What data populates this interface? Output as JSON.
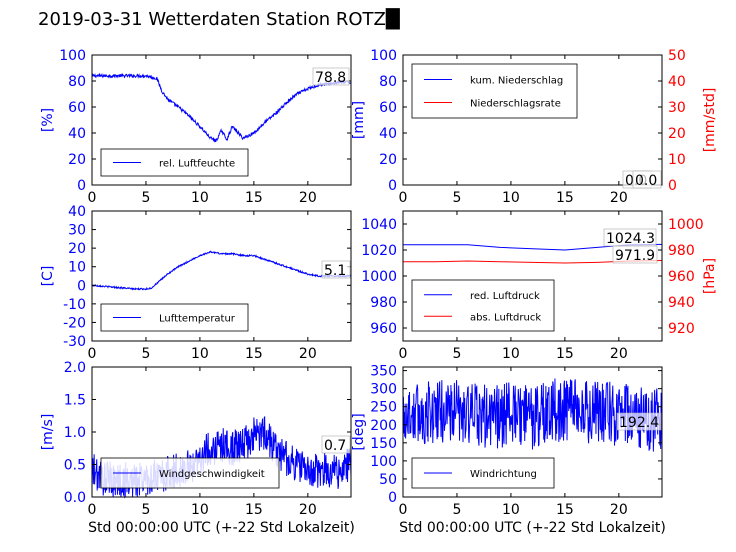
{
  "figure": {
    "title": "2019-03-31 Wetterdaten Station ROTZ█"
  },
  "colors": {
    "primary": "#0000ff",
    "secondary": "#ff0000",
    "axis": "#000000"
  },
  "chart_data": [
    {
      "id": "humidity",
      "type": "line",
      "ylabel": "[%]",
      "xlim": [
        0,
        24
      ],
      "ylim": [
        0,
        100
      ],
      "xticks": [
        0,
        5,
        10,
        15,
        20
      ],
      "yticks": [
        0,
        20,
        40,
        60,
        80,
        100
      ],
      "grid": false,
      "legend": {
        "position": "lower-left",
        "entries": [
          {
            "label": "rel. Luftfeuchte",
            "color": "#0000ff"
          }
        ]
      },
      "annotation": "78.8",
      "noise": 1.2,
      "series": [
        {
          "name": "rel. Luftfeuchte",
          "color": "#0000ff",
          "x": [
            0,
            1,
            2,
            3,
            4,
            5,
            6,
            6.5,
            7,
            8,
            9,
            10,
            11,
            11.5,
            12,
            12.5,
            13,
            14,
            15,
            16,
            17,
            18,
            19,
            20,
            21,
            22,
            23,
            24
          ],
          "y": [
            84,
            84,
            84,
            84,
            84,
            84,
            82,
            72,
            66,
            60,
            53,
            45,
            36,
            34,
            42,
            35,
            45,
            36,
            40,
            48,
            55,
            63,
            70,
            74,
            77,
            78,
            79,
            79
          ]
        }
      ]
    },
    {
      "id": "precipitation",
      "type": "line",
      "ylabel": "[mm]",
      "ylabel_right": "[mm/std]",
      "xlim": [
        0,
        24
      ],
      "ylim": [
        0,
        100
      ],
      "ylim_right": [
        0,
        50
      ],
      "xticks": [
        0,
        5,
        10,
        15,
        20
      ],
      "yticks": [
        0,
        20,
        40,
        60,
        80,
        100
      ],
      "yticks_right": [
        0,
        10,
        20,
        30,
        40,
        50
      ],
      "grid": false,
      "legend": {
        "position": "upper-left",
        "entries": [
          {
            "label": "kum. Niederschlag",
            "color": "#0000ff"
          },
          {
            "label": "Niederschlagsrate",
            "color": "#ff0000"
          }
        ]
      },
      "annotation": "0.0",
      "annotation2": "0.0",
      "noise": 0,
      "series": [
        {
          "name": "kum. Niederschlag",
          "color": "#0000ff",
          "x": [
            0,
            24
          ],
          "y": [
            0,
            0
          ]
        },
        {
          "name": "Niederschlagsrate",
          "color": "#ff0000",
          "axis": "right",
          "x": [
            0,
            24
          ],
          "y": [
            0,
            0
          ]
        }
      ]
    },
    {
      "id": "temperature",
      "type": "line",
      "ylabel": "[C]",
      "xlim": [
        0,
        24
      ],
      "ylim": [
        -30,
        40
      ],
      "xticks": [
        0,
        5,
        10,
        15,
        20
      ],
      "yticks": [
        -30,
        -20,
        -10,
        0,
        10,
        20,
        30,
        40
      ],
      "grid": false,
      "legend": {
        "position": "lower-left",
        "entries": [
          {
            "label": "Lufttemperatur",
            "color": "#0000ff"
          }
        ]
      },
      "annotation": "5.1",
      "noise": 0.4,
      "series": [
        {
          "name": "Lufttemperatur",
          "color": "#0000ff",
          "x": [
            0,
            1,
            2,
            3,
            4,
            5,
            5.5,
            6,
            7,
            8,
            9,
            10,
            11,
            12,
            13,
            14,
            15,
            16,
            17,
            18,
            19,
            20,
            21,
            22,
            23,
            24
          ],
          "y": [
            0,
            -0.5,
            -1,
            -1.5,
            -2,
            -2,
            -1.5,
            1,
            6,
            10,
            13,
            16,
            18,
            17,
            17,
            16,
            16,
            14,
            12,
            10,
            8,
            6,
            5,
            5,
            5,
            5
          ]
        }
      ]
    },
    {
      "id": "pressure",
      "type": "line",
      "xlim": [
        0,
        24
      ],
      "ylim": [
        950,
        1050
      ],
      "ylim_right": [
        910,
        1010
      ],
      "ylabel_right": "[hPa]",
      "xticks": [
        0,
        5,
        10,
        15,
        20
      ],
      "yticks": [
        960,
        980,
        1000,
        1020,
        1040
      ],
      "yticks_right": [
        920,
        940,
        960,
        980,
        1000
      ],
      "grid": false,
      "legend": {
        "position": "lower-left",
        "entries": [
          {
            "label": "red. Luftdruck",
            "color": "#0000ff"
          },
          {
            "label": "abs. Luftdruck",
            "color": "#ff0000"
          }
        ]
      },
      "annotation": "1024.3",
      "annotation2": "971.9",
      "noise": 0,
      "series": [
        {
          "name": "red. Luftdruck",
          "color": "#0000ff",
          "x": [
            0,
            3,
            6,
            9,
            12,
            15,
            18,
            21,
            24
          ],
          "y": [
            1024,
            1024,
            1024,
            1022,
            1021,
            1020,
            1022,
            1024,
            1024.3
          ]
        },
        {
          "name": "abs. Luftdruck",
          "color": "#ff0000",
          "axis": "right",
          "x": [
            0,
            3,
            6,
            9,
            12,
            15,
            18,
            21,
            24
          ],
          "y": [
            971,
            971,
            971.5,
            971,
            970.5,
            970,
            970.5,
            971.5,
            971.9
          ]
        }
      ]
    },
    {
      "id": "wind-speed",
      "type": "line",
      "ylabel": "[m/s]",
      "xlabel": "Std 00:00:00 UTC (+-22 Std Lokalzeit)",
      "xlim": [
        0,
        24
      ],
      "ylim": [
        0,
        2.0
      ],
      "xticks": [
        0,
        5,
        10,
        15,
        20
      ],
      "yticks": [
        0.0,
        0.5,
        1.0,
        1.5,
        2.0
      ],
      "ytick_labels": [
        "0.0",
        "0.5",
        "1.0",
        "1.5",
        "2.0"
      ],
      "grid": false,
      "legend": {
        "position": "lower-center",
        "entries": [
          {
            "label": "Windgeschwindigkeit",
            "color": "#0000ff"
          }
        ]
      },
      "annotation": "0.7",
      "noise": 0.28,
      "series": [
        {
          "name": "Windgeschwindigkeit",
          "color": "#0000ff",
          "x": [
            0,
            1,
            2,
            3,
            4,
            5,
            6,
            7,
            8,
            9,
            10,
            11,
            12,
            13,
            14,
            15,
            16,
            17,
            18,
            19,
            20,
            21,
            22,
            23,
            24
          ],
          "y": [
            0.4,
            0.3,
            0.25,
            0.25,
            0.25,
            0.3,
            0.3,
            0.35,
            0.4,
            0.45,
            0.6,
            0.75,
            0.8,
            0.75,
            0.8,
            0.95,
            1.0,
            0.75,
            0.6,
            0.5,
            0.4,
            0.4,
            0.4,
            0.4,
            0.5
          ]
        }
      ]
    },
    {
      "id": "wind-direction",
      "type": "line",
      "ylabel": "[deg]",
      "xlabel": "Std 00:00:00 UTC (+-22 Std Lokalzeit)",
      "xlim": [
        0,
        24
      ],
      "ylim": [
        0,
        360
      ],
      "xticks": [
        0,
        5,
        10,
        15,
        20
      ],
      "yticks": [
        0,
        50,
        100,
        150,
        200,
        250,
        300,
        350
      ],
      "grid": false,
      "legend": {
        "position": "lower-left",
        "entries": [
          {
            "label": "Windrichtung",
            "color": "#0000ff"
          }
        ]
      },
      "annotation": "192.4",
      "noise": 90,
      "series": [
        {
          "name": "Windrichtung",
          "color": "#0000ff",
          "x": [
            0,
            2,
            4,
            6,
            8,
            10,
            12,
            14,
            16,
            18,
            20,
            22,
            24
          ],
          "y": [
            230,
            230,
            240,
            230,
            220,
            230,
            220,
            240,
            240,
            230,
            230,
            220,
            210
          ]
        }
      ]
    }
  ]
}
